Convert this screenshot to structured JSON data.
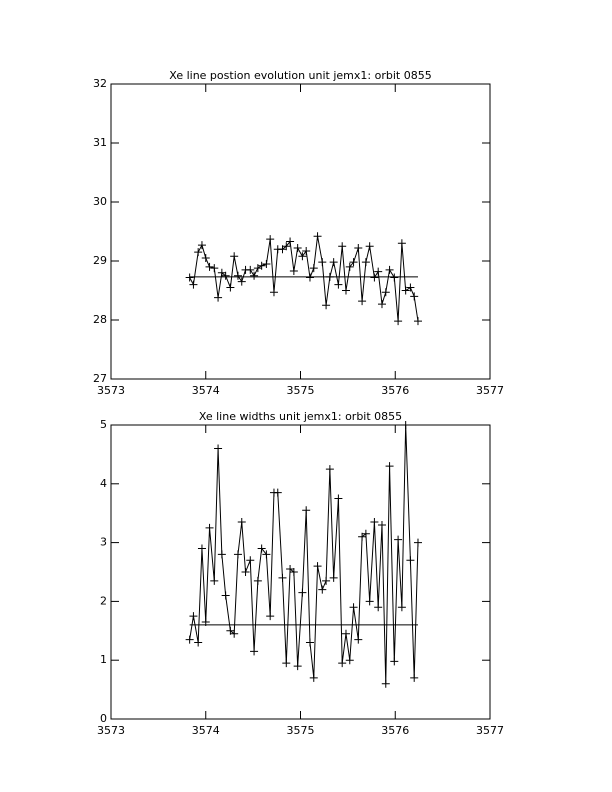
{
  "chart_data": [
    {
      "type": "line",
      "title": "Xe line postion evolution unit jemx1: orbit 0855",
      "x": [
        3573.83,
        3573.87,
        3573.92,
        3573.96,
        3574.0,
        3574.04,
        3574.09,
        3574.13,
        3574.17,
        3574.21,
        3574.26,
        3574.3,
        3574.34,
        3574.38,
        3574.42,
        3574.47,
        3574.51,
        3574.55,
        3574.59,
        3574.64,
        3574.68,
        3574.72,
        3574.76,
        3574.81,
        3574.85,
        3574.89,
        3574.93,
        3574.97,
        3575.02,
        3575.06,
        3575.1,
        3575.14,
        3575.18,
        3575.23,
        3575.27,
        3575.31,
        3575.35,
        3575.4,
        3575.44,
        3575.48,
        3575.52,
        3575.56,
        3575.61,
        3575.65,
        3575.69,
        3575.73,
        3575.78,
        3575.82,
        3575.86,
        3575.9,
        3575.94,
        3575.99,
        3576.03,
        3576.07,
        3576.11,
        3576.16,
        3576.2,
        3576.24
      ],
      "values": [
        28.72,
        28.6,
        29.15,
        29.27,
        29.05,
        28.9,
        28.88,
        28.38,
        28.8,
        28.75,
        28.55,
        29.08,
        28.75,
        28.65,
        28.85,
        28.85,
        28.75,
        28.88,
        28.92,
        28.95,
        29.37,
        28.47,
        29.2,
        29.2,
        29.25,
        29.33,
        28.83,
        29.22,
        29.08,
        29.17,
        28.72,
        28.88,
        29.42,
        28.98,
        28.25,
        28.73,
        28.98,
        28.6,
        29.25,
        28.5,
        28.9,
        28.98,
        29.22,
        28.32,
        28.98,
        29.25,
        28.72,
        28.82,
        28.27,
        28.47,
        28.85,
        28.72,
        27.98,
        29.3,
        28.5,
        28.55,
        28.4,
        27.98
      ],
      "color": "#000000",
      "hline": 28.73,
      "xlim": [
        3573,
        3577
      ],
      "xticks": [
        3573,
        3574,
        3575,
        3576,
        3577
      ],
      "ylim": [
        27,
        32
      ],
      "yticks": [
        27,
        28,
        29,
        30,
        31,
        32
      ]
    },
    {
      "type": "line",
      "title": "Xe line widths unit jemx1: orbit 0855",
      "x": [
        3573.83,
        3573.87,
        3573.92,
        3573.96,
        3574.0,
        3574.04,
        3574.09,
        3574.13,
        3574.17,
        3574.21,
        3574.26,
        3574.3,
        3574.34,
        3574.38,
        3574.42,
        3574.47,
        3574.51,
        3574.55,
        3574.59,
        3574.64,
        3574.68,
        3574.72,
        3574.76,
        3574.81,
        3574.85,
        3574.89,
        3574.93,
        3574.97,
        3575.02,
        3575.06,
        3575.1,
        3575.14,
        3575.18,
        3575.23,
        3575.27,
        3575.31,
        3575.35,
        3575.4,
        3575.44,
        3575.48,
        3575.52,
        3575.56,
        3575.61,
        3575.65,
        3575.69,
        3575.73,
        3575.78,
        3575.82,
        3575.86,
        3575.9,
        3575.94,
        3575.99,
        3576.03,
        3576.07,
        3576.11,
        3576.16,
        3576.2,
        3576.24
      ],
      "values": [
        1.35,
        1.75,
        1.3,
        2.9,
        1.65,
        3.25,
        2.35,
        4.6,
        2.8,
        2.1,
        1.5,
        1.45,
        2.8,
        3.35,
        2.5,
        2.7,
        1.15,
        2.35,
        2.9,
        2.8,
        1.75,
        3.85,
        3.85,
        2.4,
        0.95,
        2.55,
        2.5,
        0.9,
        2.15,
        3.55,
        1.3,
        0.7,
        2.6,
        2.2,
        2.35,
        4.25,
        2.4,
        3.75,
        0.95,
        1.45,
        1.0,
        1.9,
        1.35,
        3.1,
        3.15,
        2.0,
        3.35,
        1.9,
        3.3,
        0.6,
        4.3,
        0.98,
        3.05,
        1.9,
        5.0,
        2.7,
        0.7,
        3.0
      ],
      "color": "#000000",
      "hline": 1.6,
      "xlim": [
        3573,
        3577
      ],
      "xticks": [
        3573,
        3574,
        3575,
        3576,
        3577
      ],
      "ylim": [
        0,
        5
      ],
      "yticks": [
        0,
        1,
        2,
        3,
        4,
        5
      ]
    }
  ]
}
